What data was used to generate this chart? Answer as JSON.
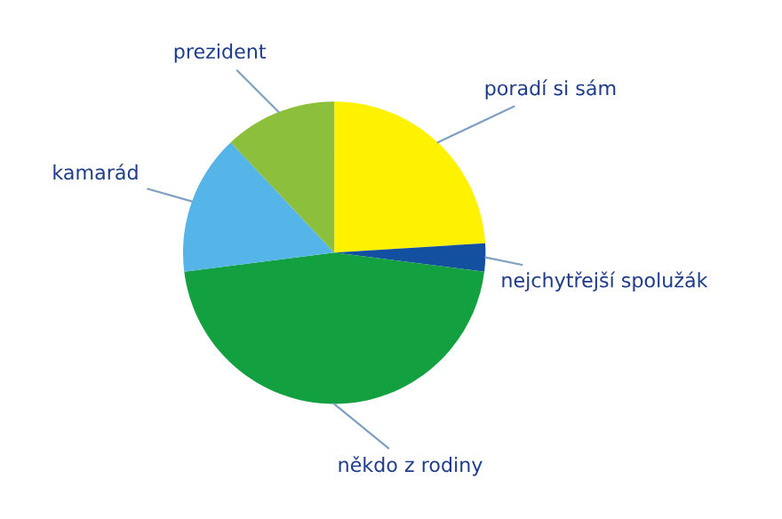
{
  "chart_data": {
    "type": "pie",
    "categories": [
      "poradí si sám",
      "nejchytřejší spolužák",
      "někdo z rodiny",
      "kamarád",
      "prezident"
    ],
    "values": [
      24,
      3,
      46,
      15,
      12
    ],
    "colors": [
      "#fff200",
      "#1450a0",
      "#13a040",
      "#55b4e8",
      "#8cc03c"
    ]
  }
}
